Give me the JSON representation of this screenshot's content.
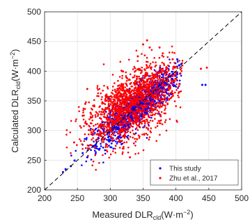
{
  "chart_data": {
    "type": "scatter",
    "xlabel": {
      "main": "Measured DLR",
      "sub": "cld",
      "unit_open": "(W·m",
      "unit_sup": "−2",
      "unit_close": ")"
    },
    "ylabel": {
      "main": "Calculated DLR",
      "sub": "cld",
      "unit_open": "(W·m",
      "unit_sup": "−2",
      "unit_close": ")"
    },
    "xlim": [
      200,
      500
    ],
    "ylim": [
      200,
      500
    ],
    "xticks": [
      200,
      250,
      300,
      350,
      400,
      450,
      500
    ],
    "yticks": [
      200,
      250,
      300,
      350,
      400,
      450,
      500
    ],
    "grid": true,
    "legend_position": "bottom-right",
    "reference_line": {
      "style": "dashed",
      "from": [
        200,
        200
      ],
      "to": [
        500,
        500
      ],
      "color": "#000000"
    },
    "series": [
      {
        "name": "This study",
        "color": "#0000ff",
        "cloud": {
          "x_range": [
            225,
            410
          ],
          "y_range": [
            228,
            420
          ],
          "center": [
            340,
            340
          ],
          "spread_along": 45,
          "spread_across": 12
        },
        "points": [
          [
            228,
            230
          ],
          [
            232,
            235
          ],
          [
            240,
            240
          ],
          [
            258,
            262
          ],
          [
            265,
            255
          ],
          [
            290,
            300
          ],
          [
            355,
            330
          ],
          [
            370,
            346
          ],
          [
            402,
            420
          ],
          [
            405,
            410
          ],
          [
            408,
            412
          ],
          [
            440,
            377
          ],
          [
            445,
            377
          ]
        ]
      },
      {
        "name": "Zhu et al., 2017",
        "color": "#ff0000",
        "cloud": {
          "x_range": [
            230,
            410
          ],
          "y_range": [
            232,
            452
          ],
          "center": [
            335,
            345
          ],
          "spread_along": 42,
          "spread_across": 22
        },
        "points": [
          [
            245,
            280
          ],
          [
            258,
            325
          ],
          [
            262,
            345
          ],
          [
            265,
            370
          ],
          [
            270,
            330
          ],
          [
            285,
            310
          ],
          [
            300,
            290
          ],
          [
            318,
            400
          ],
          [
            330,
            255
          ],
          [
            342,
            425
          ],
          [
            350,
            445
          ],
          [
            356,
            452
          ],
          [
            360,
            440
          ],
          [
            375,
            440
          ],
          [
            380,
            430
          ],
          [
            395,
            420
          ],
          [
            400,
            395
          ],
          [
            405,
            365
          ],
          [
            438,
            404
          ],
          [
            447,
            406
          ]
        ]
      }
    ]
  }
}
